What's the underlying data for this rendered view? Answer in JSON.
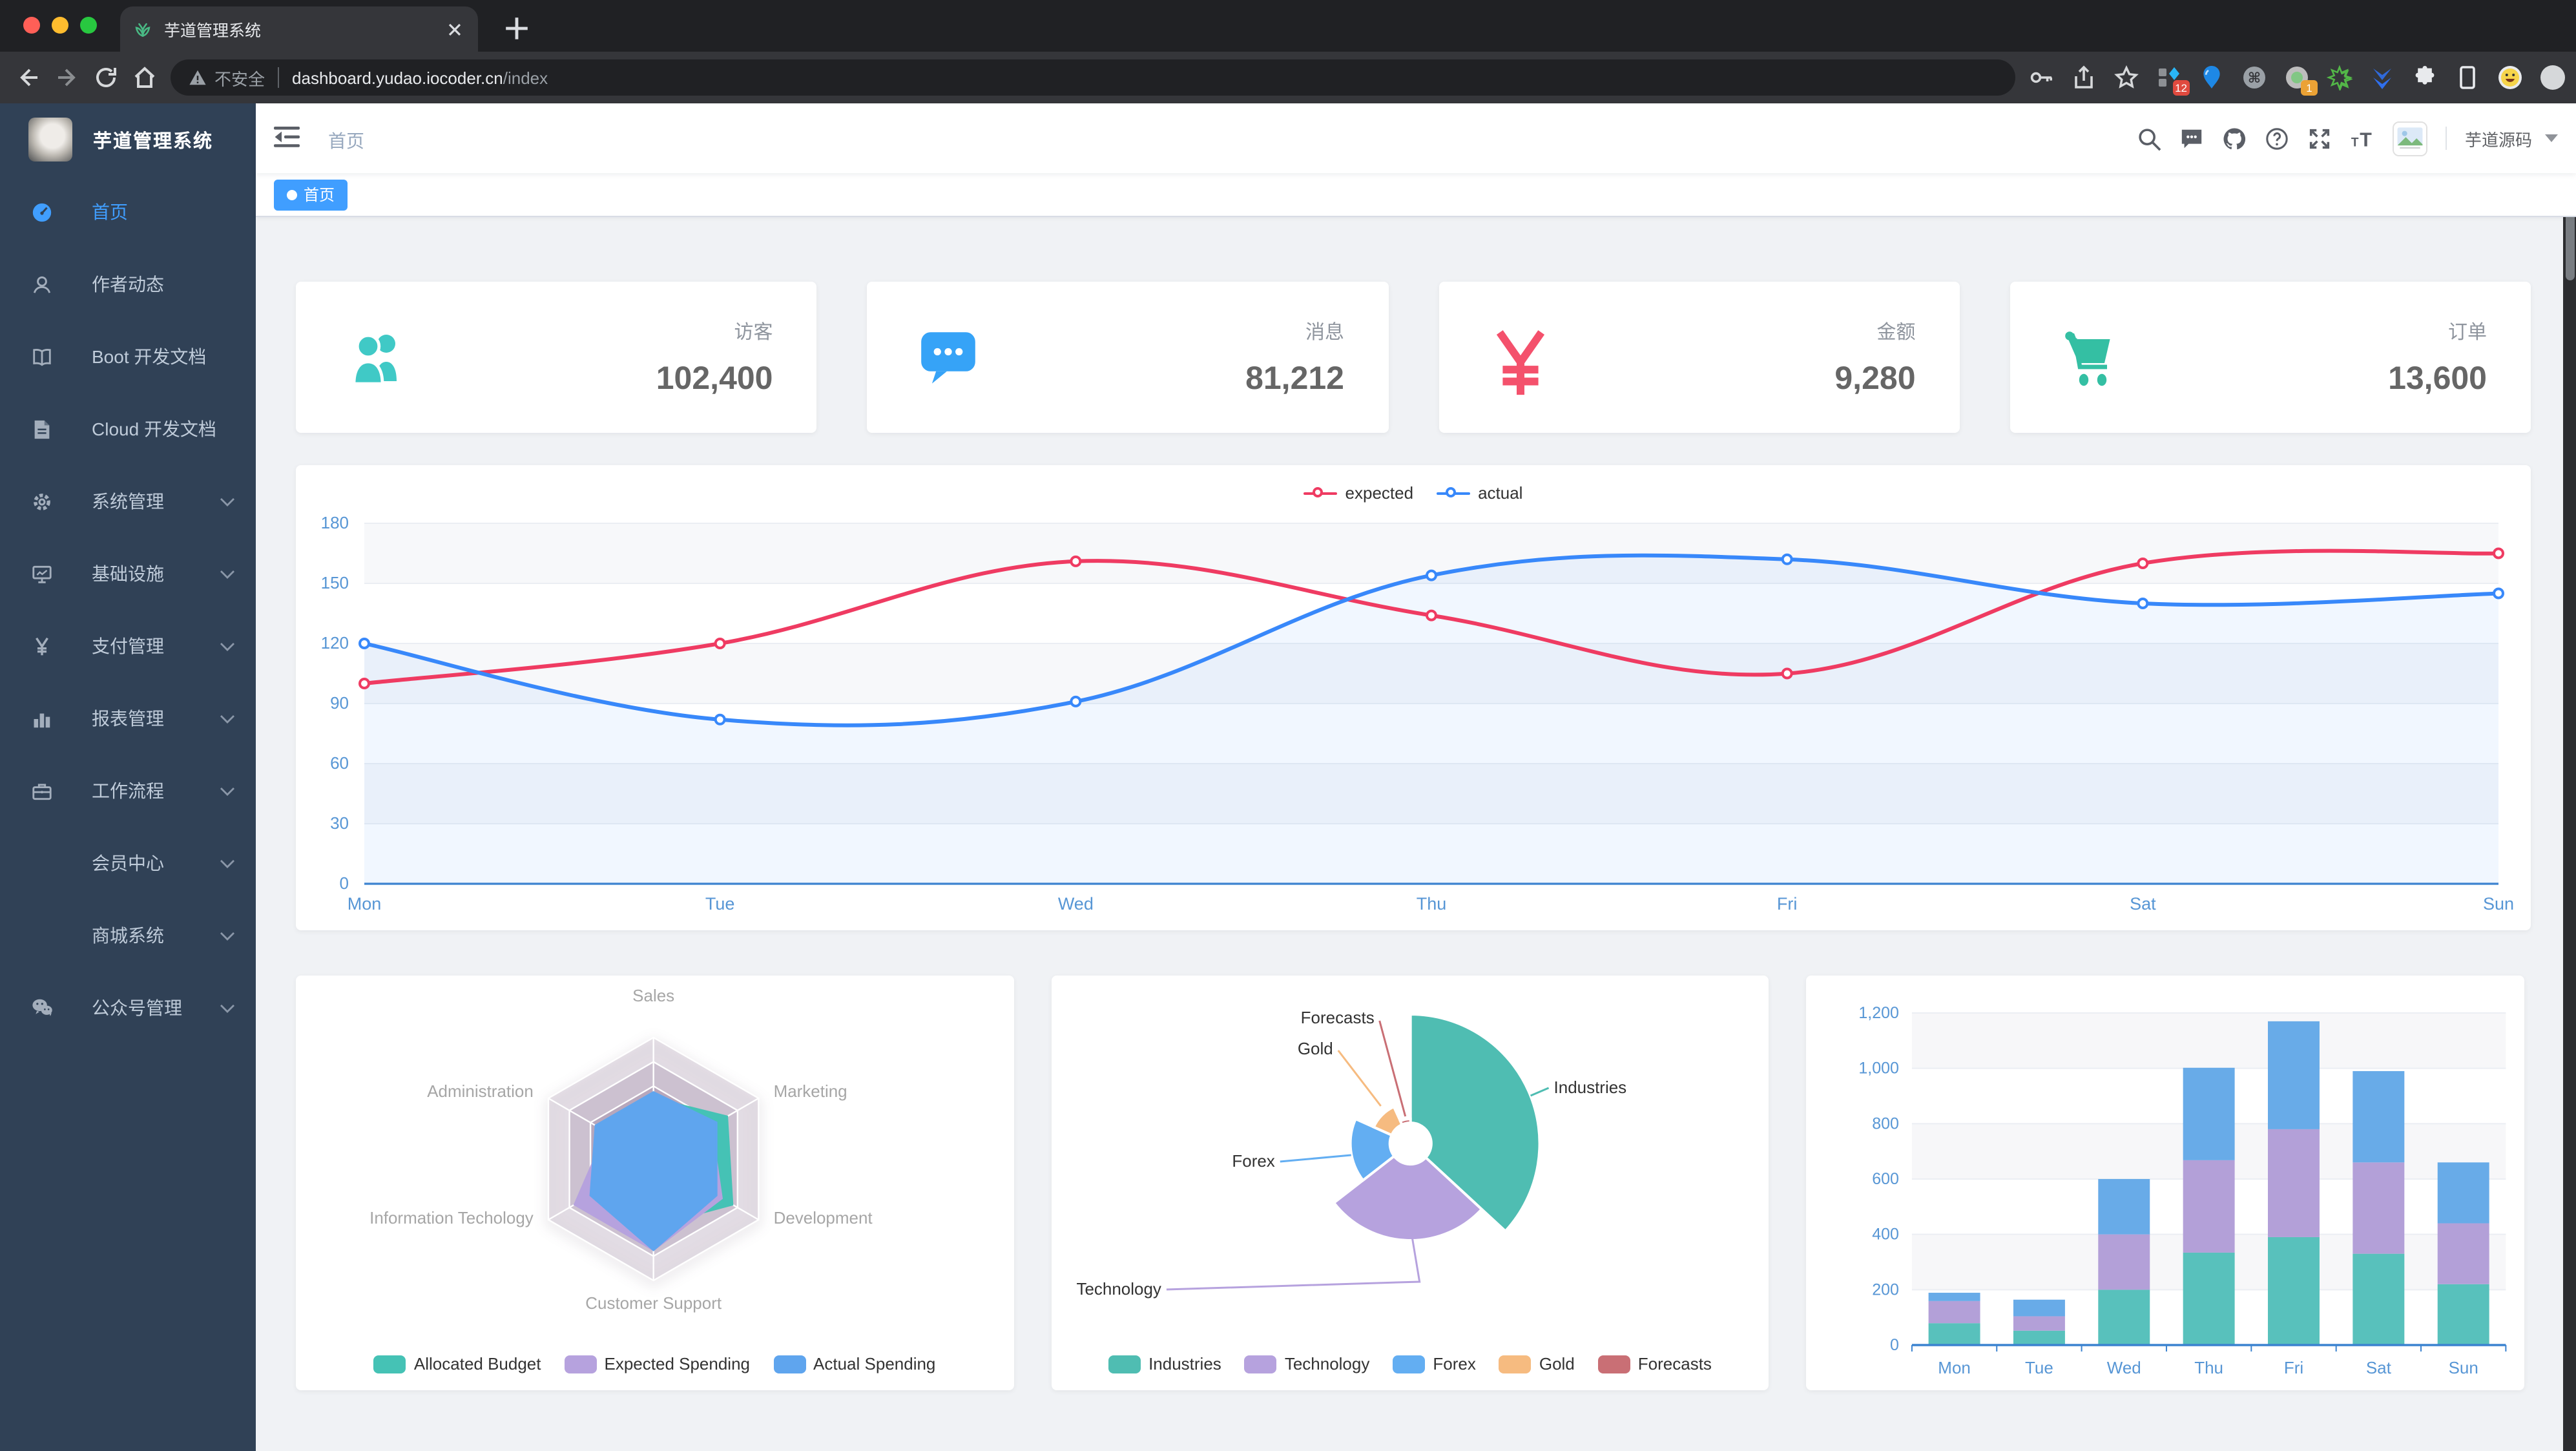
{
  "theme": {
    "accent": "#409eff",
    "sidebar_bg": "#304156",
    "content_bg": "#f0f2f5",
    "chrome_bg": "#202124",
    "toolbar_bg": "#35363a"
  },
  "browser": {
    "tab": {
      "title": "芋道管理系统",
      "favicon": "plant-icon"
    },
    "traffic_lights": [
      "#ff5f57",
      "#febc2e",
      "#28c840"
    ],
    "address": {
      "security_warning": "不安全",
      "url_host": "dashboard.yudao.iocoder.cn",
      "url_path": "/index"
    },
    "toolbar_icons": [
      "back",
      "forward",
      "reload",
      "home"
    ],
    "right_icons": [
      {
        "name": "key-icon"
      },
      {
        "name": "share-icon"
      },
      {
        "name": "star-icon"
      },
      {
        "name": "extension-grid-icon",
        "badge": "12",
        "badge_color": "#e04a3f"
      },
      {
        "name": "balloon-extension-icon"
      },
      {
        "name": "command-extension-icon"
      },
      {
        "name": "circle-extension-icon",
        "badge": "1",
        "badge_color": "#eba235"
      },
      {
        "name": "green-star-extension-icon"
      },
      {
        "name": "chevrons-extension-icon"
      },
      {
        "name": "puzzle-extensions-icon"
      },
      {
        "name": "reading-list-icon"
      },
      {
        "name": "profile-emoji-icon"
      },
      {
        "name": "menu-dots-icon"
      }
    ]
  },
  "sidebar": {
    "logo_title": "芋道管理系统",
    "items": [
      {
        "label": "首页",
        "icon": "dashboard",
        "active": true,
        "chevron": false
      },
      {
        "label": "作者动态",
        "icon": "author",
        "active": false,
        "chevron": false
      },
      {
        "label": "Boot 开发文档",
        "icon": "book",
        "active": false,
        "chevron": false
      },
      {
        "label": "Cloud 开发文档",
        "icon": "doc",
        "active": false,
        "chevron": false
      },
      {
        "label": "系统管理",
        "icon": "gear",
        "active": false,
        "chevron": true
      },
      {
        "label": "基础设施",
        "icon": "infra",
        "active": false,
        "chevron": true
      },
      {
        "label": "支付管理",
        "icon": "yen",
        "active": false,
        "chevron": true
      },
      {
        "label": "报表管理",
        "icon": "chart",
        "active": false,
        "chevron": true
      },
      {
        "label": "工作流程",
        "icon": "work",
        "active": false,
        "chevron": true
      },
      {
        "label": "会员中心",
        "icon": null,
        "active": false,
        "chevron": true
      },
      {
        "label": "商城系统",
        "icon": null,
        "active": false,
        "chevron": true
      },
      {
        "label": "公众号管理",
        "icon": "wechat",
        "active": false,
        "chevron": true
      }
    ]
  },
  "header": {
    "breadcrumb": "首页",
    "icons": [
      "search",
      "chat",
      "github",
      "question",
      "expand",
      "fontsize"
    ],
    "username": "芋道源码"
  },
  "tags": [
    {
      "label": "首页",
      "active": true
    }
  ],
  "stats": [
    {
      "label": "访客",
      "value": "102,400",
      "icon": "people",
      "color": "#40c9c6"
    },
    {
      "label": "消息",
      "value": "81,212",
      "icon": "message",
      "color": "#36a3f7"
    },
    {
      "label": "金额",
      "value": "9,280",
      "icon": "money",
      "color": "#f4516c"
    },
    {
      "label": "订单",
      "value": "13,600",
      "icon": "cart",
      "color": "#34bfa3"
    }
  ],
  "chart_data": [
    {
      "type": "line",
      "x": [
        "Mon",
        "Tue",
        "Wed",
        "Thu",
        "Fri",
        "Sat",
        "Sun"
      ],
      "ylim": [
        0,
        180
      ],
      "ytick_step": 30,
      "legend_position": "top",
      "grid": "horizontal-bands",
      "axis_label_color": "#5796d5",
      "series": [
        {
          "name": "expected",
          "color": "#ef3b62",
          "values": [
            100,
            120,
            161,
            134,
            105,
            160,
            165
          ]
        },
        {
          "name": "actual",
          "color": "#3888fa",
          "area_color": "rgba(56,136,250,0.07)",
          "values": [
            120,
            82,
            91,
            154,
            162,
            140,
            145
          ]
        }
      ]
    },
    {
      "type": "radar",
      "indicators": [
        {
          "name": "Sales",
          "max": 10000
        },
        {
          "name": "Marketing",
          "max": 20000
        },
        {
          "name": "Development",
          "max": 20000
        },
        {
          "name": "Customer Support",
          "max": 20000
        },
        {
          "name": "Information Techology",
          "max": 20000
        },
        {
          "name": "Administration",
          "max": 20000
        }
      ],
      "legend_position": "bottom",
      "series": [
        {
          "name": "Allocated Budget",
          "color": "#45c2b5",
          "values": [
            5000,
            14000,
            15000,
            11000,
            12000,
            7000
          ]
        },
        {
          "name": "Expected Spending",
          "color": "#b6a2de",
          "values": [
            4000,
            11000,
            13000,
            15000,
            15000,
            9000
          ]
        },
        {
          "name": "Actual Spending",
          "color": "#5fa5ee",
          "values": [
            5500,
            12000,
            12000,
            15000,
            12000,
            11000
          ]
        }
      ]
    },
    {
      "type": "pie",
      "rose": true,
      "inner_radius_ratio": 0.16,
      "legend_position": "bottom",
      "items": [
        {
          "name": "Industries",
          "value": 320,
          "color": "#4fbdb2"
        },
        {
          "name": "Technology",
          "value": 240,
          "color": "#b6a2de"
        },
        {
          "name": "Forex",
          "value": 149,
          "color": "#63aef2"
        },
        {
          "name": "Gold",
          "value": 100,
          "color": "#f6bb80"
        },
        {
          "name": "Forecasts",
          "value": 59,
          "color": "#c96f75"
        }
      ]
    },
    {
      "type": "bar",
      "stacked": true,
      "categories": [
        "Mon",
        "Tue",
        "Wed",
        "Thu",
        "Fri",
        "Sat",
        "Sun"
      ],
      "ylim": [
        0,
        1200
      ],
      "ytick_step": 200,
      "axis_label_color": "#5796d5",
      "series": [
        {
          "color": "#58c1bc",
          "values": [
            79,
            52,
            200,
            334,
            390,
            330,
            220
          ]
        },
        {
          "color": "#b3a0d8",
          "values": [
            80,
            52,
            200,
            334,
            390,
            330,
            220
          ]
        },
        {
          "color": "#68abe8",
          "values": [
            30,
            60,
            200,
            334,
            390,
            330,
            220
          ]
        }
      ]
    }
  ]
}
